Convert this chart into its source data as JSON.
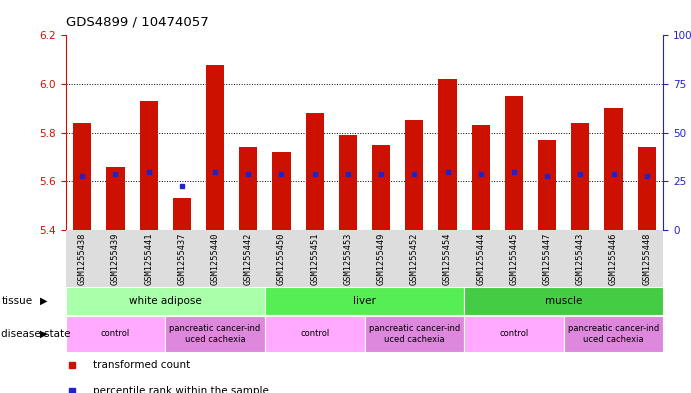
{
  "title": "GDS4899 / 10474057",
  "samples": [
    "GSM1255438",
    "GSM1255439",
    "GSM1255441",
    "GSM1255437",
    "GSM1255440",
    "GSM1255442",
    "GSM1255450",
    "GSM1255451",
    "GSM1255453",
    "GSM1255449",
    "GSM1255452",
    "GSM1255454",
    "GSM1255444",
    "GSM1255445",
    "GSM1255447",
    "GSM1255443",
    "GSM1255446",
    "GSM1255448"
  ],
  "bar_values": [
    5.84,
    5.66,
    5.93,
    5.53,
    6.08,
    5.74,
    5.72,
    5.88,
    5.79,
    5.75,
    5.85,
    6.02,
    5.83,
    5.95,
    5.77,
    5.84,
    5.9,
    5.74
  ],
  "blue_dot_values": [
    5.62,
    5.63,
    5.64,
    5.58,
    5.64,
    5.63,
    5.63,
    5.63,
    5.63,
    5.63,
    5.63,
    5.64,
    5.63,
    5.64,
    5.62,
    5.63,
    5.63,
    5.62
  ],
  "ylim": [
    5.4,
    6.2
  ],
  "yticks_left": [
    5.4,
    5.6,
    5.8,
    6.0,
    6.2
  ],
  "yticks_right": [
    0,
    25,
    50,
    75,
    100
  ],
  "bar_color": "#cc1100",
  "dot_color": "#2222cc",
  "bar_bottom": 5.4,
  "tissue_groups": [
    {
      "label": "white adipose",
      "start": 0,
      "end": 6
    },
    {
      "label": "liver",
      "start": 6,
      "end": 12
    },
    {
      "label": "muscle",
      "start": 12,
      "end": 18
    }
  ],
  "tissue_colors": [
    "#aaffaa",
    "#55ee55",
    "#44cc44"
  ],
  "disease_groups": [
    {
      "label": "control",
      "start": 0,
      "end": 3
    },
    {
      "label": "pancreatic cancer-ind\nuced cachexia",
      "start": 3,
      "end": 6
    },
    {
      "label": "control",
      "start": 6,
      "end": 9
    },
    {
      "label": "pancreatic cancer-ind\nuced cachexia",
      "start": 9,
      "end": 12
    },
    {
      "label": "control",
      "start": 12,
      "end": 15
    },
    {
      "label": "pancreatic cancer-ind\nuced cachexia",
      "start": 15,
      "end": 18
    }
  ],
  "disease_control_color": "#ffaaff",
  "disease_cancer_color": "#dd88dd",
  "sample_area_color": "#dddddd",
  "background_color": "#ffffff",
  "legend_red_label": "transformed count",
  "legend_blue_label": "percentile rank within the sample",
  "tissue_label": "tissue",
  "disease_label": "disease state"
}
